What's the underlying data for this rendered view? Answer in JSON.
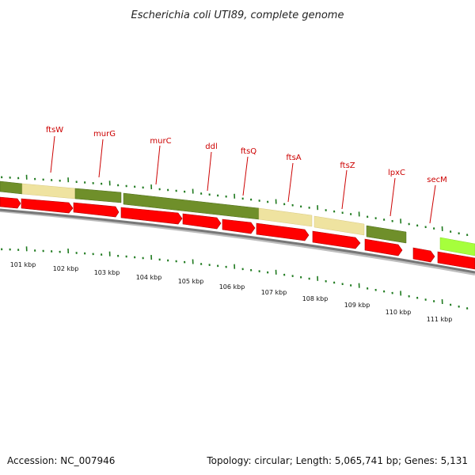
{
  "title": "Escherichia coli UTI89, complete genome",
  "footer": {
    "accession": "Accession: NC_007946",
    "topology": "Topology: circular; Length: 5,065,741 bp; Genes: 5,131"
  },
  "colors": {
    "gene_label": "#cc0000",
    "cds_red": "#ff0000",
    "feature_olive": "#6f8f2a",
    "feature_khaki": "#efe3a0",
    "feature_lime": "#a6ff3c",
    "tick_green": "#1f7a1f",
    "backbone_gray": "#777777"
  },
  "gene_labels": [
    "ftsW",
    "murG",
    "murC",
    "ddl",
    "ftsQ",
    "ftsA",
    "ftsZ",
    "lpxC",
    "secM"
  ],
  "kbp_labels": [
    "101 kbp",
    "102 kbp",
    "103 kbp",
    "104 kbp",
    "105 kbp",
    "106 kbp",
    "107 kbp",
    "108 kbp",
    "109 kbp",
    "110 kbp",
    "111 kbp"
  ]
}
